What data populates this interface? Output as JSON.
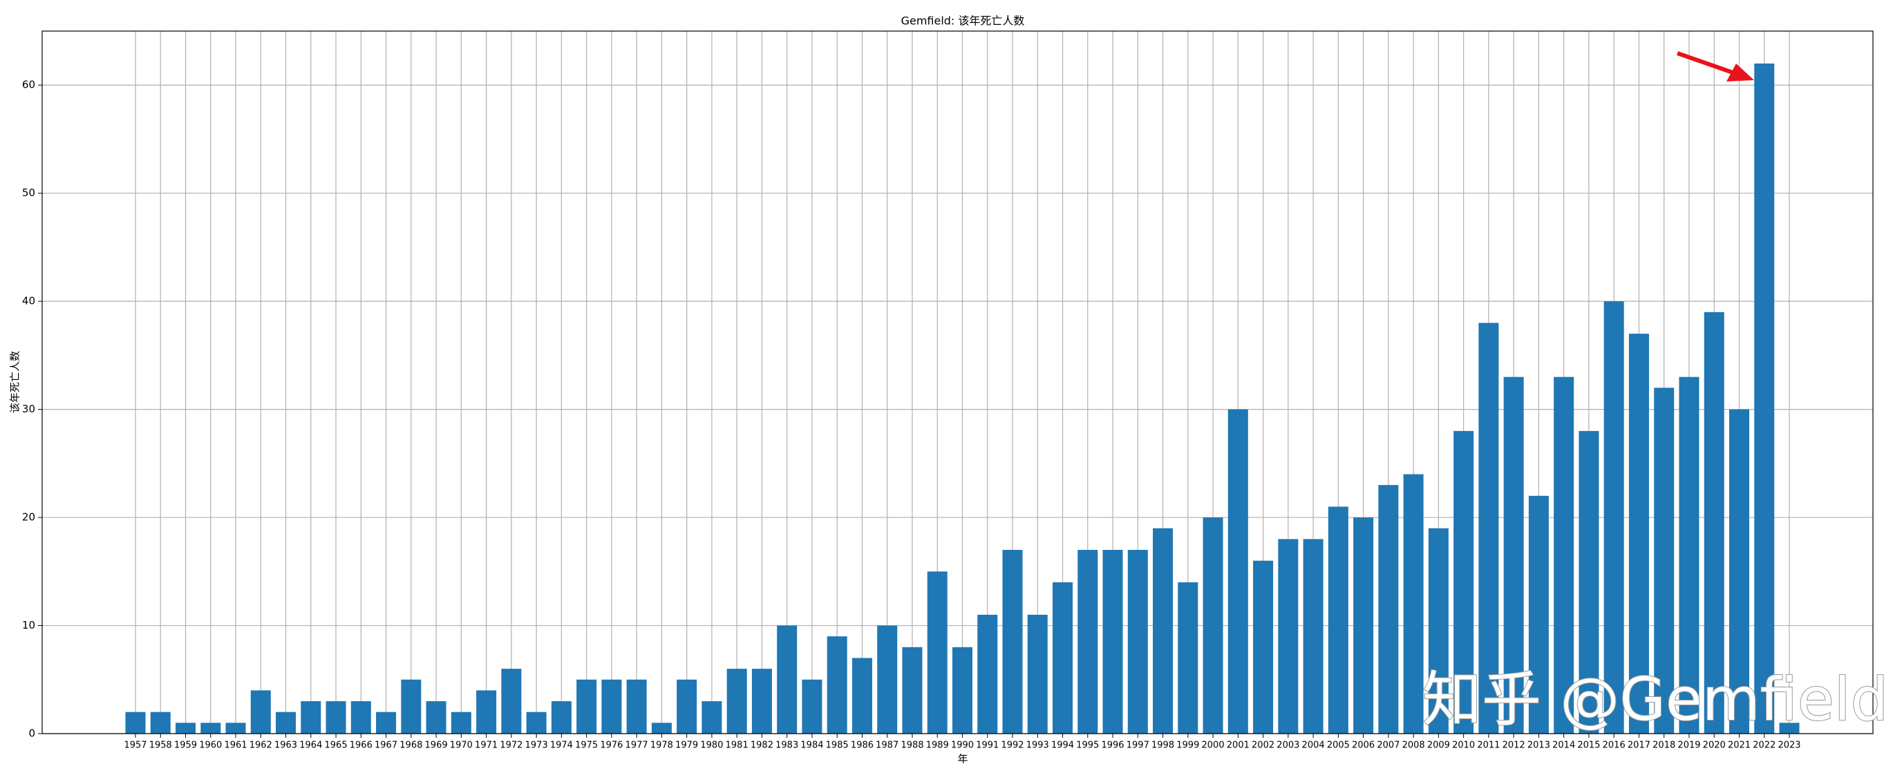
{
  "chart_data": {
    "type": "bar",
    "title": "Gemfield: 该年死亡人数",
    "x_label": "年",
    "y_label": "该年死亡人数",
    "categories": [
      "1957",
      "1958",
      "1959",
      "1960",
      "1961",
      "1962",
      "1963",
      "1964",
      "1965",
      "1966",
      "1967",
      "1968",
      "1969",
      "1970",
      "1971",
      "1972",
      "1973",
      "1974",
      "1975",
      "1976",
      "1977",
      "1978",
      "1979",
      "1980",
      "1981",
      "1982",
      "1983",
      "1984",
      "1985",
      "1986",
      "1987",
      "1988",
      "1989",
      "1990",
      "1991",
      "1992",
      "1993",
      "1994",
      "1995",
      "1996",
      "1997",
      "1998",
      "1999",
      "2000",
      "2001",
      "2002",
      "2003",
      "2004",
      "2005",
      "2006",
      "2007",
      "2008",
      "2009",
      "2010",
      "2011",
      "2012",
      "2013",
      "2014",
      "2015",
      "2016",
      "2017",
      "2018",
      "2019",
      "2020",
      "2021",
      "2022",
      "2023"
    ],
    "values": [
      2,
      2,
      1,
      1,
      1,
      4,
      2,
      3,
      3,
      3,
      2,
      5,
      3,
      2,
      4,
      6,
      2,
      3,
      5,
      5,
      5,
      1,
      5,
      3,
      6,
      6,
      10,
      5,
      9,
      7,
      10,
      8,
      15,
      8,
      11,
      17,
      11,
      14,
      17,
      17,
      17,
      19,
      14,
      20,
      30,
      16,
      18,
      18,
      21,
      20,
      23,
      24,
      19,
      28,
      38,
      33,
      22,
      33,
      28,
      40,
      37,
      32,
      33,
      39,
      30,
      62,
      1
    ],
    "color": "#1f77b4",
    "ylim": [
      0,
      65
    ],
    "yticks": [
      0,
      10,
      20,
      30,
      40,
      50,
      60
    ],
    "grid": true,
    "watermark": "知乎 @Gemfield"
  }
}
